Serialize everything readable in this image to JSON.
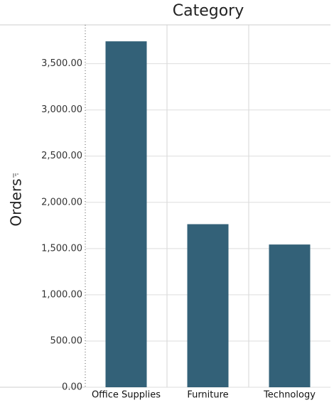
{
  "chart_data": {
    "type": "bar",
    "title": "Category",
    "y_label": "Orders",
    "categories": [
      "Office Supplies",
      "Furniture",
      "Technology"
    ],
    "values": [
      3742,
      1764,
      1544
    ],
    "color": "#336178",
    "ylim": [
      0,
      3920
    ],
    "yticks": [
      {
        "value": 0,
        "label": "0.00"
      },
      {
        "value": 500,
        "label": "500.00"
      },
      {
        "value": 1000,
        "label": "1,000.00"
      },
      {
        "value": 1500,
        "label": "1,500.00"
      },
      {
        "value": 2000,
        "label": "2,000.00"
      },
      {
        "value": 2500,
        "label": "2,500.00"
      },
      {
        "value": 3000,
        "label": "3,000.00"
      },
      {
        "value": 3500,
        "label": "3,500.00"
      }
    ],
    "grid": true
  }
}
